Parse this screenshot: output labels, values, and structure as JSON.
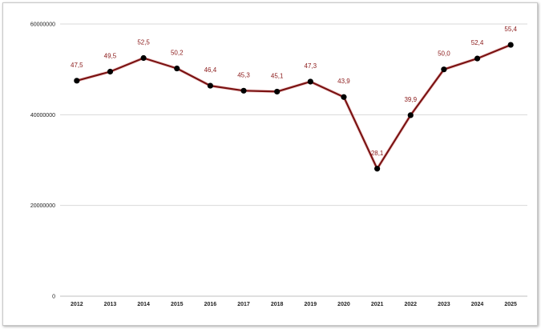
{
  "chart_data": {
    "type": "line",
    "categories": [
      "2012",
      "2013",
      "2014",
      "2015",
      "2016",
      "2017",
      "2018",
      "2019",
      "2020",
      "2021",
      "2022",
      "2023",
      "2024",
      "2025"
    ],
    "series": [
      {
        "values": [
          47500000,
          49500000,
          52500000,
          50200000,
          46400000,
          45300000,
          45100000,
          47300000,
          43900000,
          28100000,
          39900000,
          50000000,
          52400000,
          55400000
        ],
        "data_labels": [
          "47,5",
          "49,5",
          "52,5",
          "50,2",
          "46,4",
          "45,3",
          "45,1",
          "47,3",
          "43,9",
          "28,1",
          "39,9",
          "50,0",
          "52,4",
          "55,4"
        ]
      }
    ],
    "y_ticks": [
      0,
      20000000,
      40000000,
      60000000
    ],
    "y_tick_labels": [
      "0",
      "20000000",
      "40000000",
      "60000000"
    ],
    "ylim": [
      0,
      60000000
    ],
    "grid": true,
    "legend": "none",
    "colors": {
      "line": "#7b1212",
      "marker": "#000000",
      "label": "#8b1a1a",
      "grid": "#d9d9d9"
    }
  }
}
